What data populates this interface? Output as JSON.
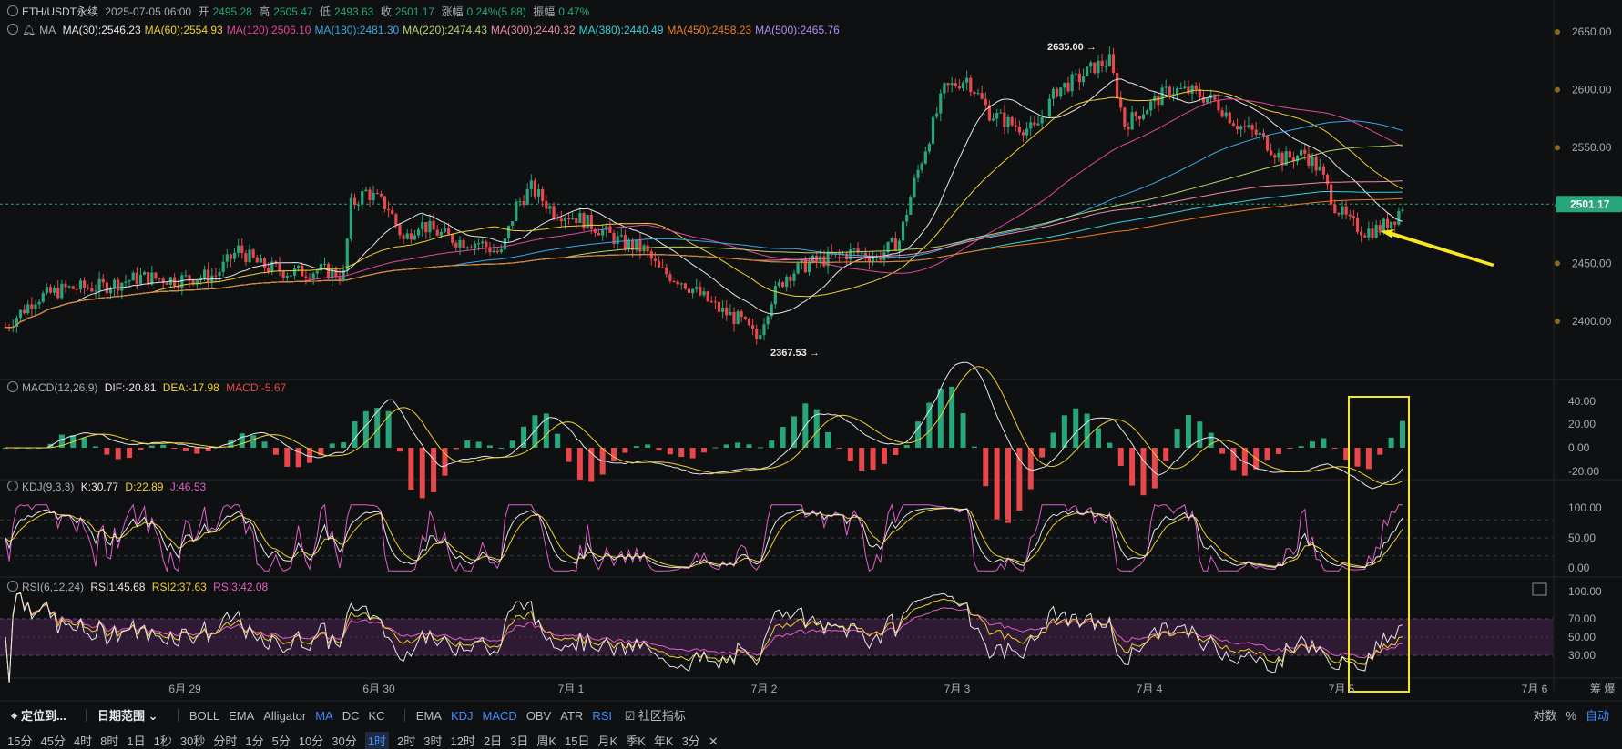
{
  "header": {
    "symbol": "ETH/USDT永续",
    "datetime": "2025-07-05 06:00",
    "open_label": "开",
    "open": "2495.28",
    "high_label": "高",
    "high": "2505.47",
    "low_label": "低",
    "low": "2493.63",
    "close_label": "收",
    "close": "2501.17",
    "change_label": "涨幅",
    "change": "0.24%(5.88)",
    "amplitude_label": "振幅",
    "amplitude": "0.47%"
  },
  "ma_legend": {
    "name": "MA",
    "items": [
      {
        "label": "MA(30):2546.23",
        "color": "#e8e8e8"
      },
      {
        "label": "MA(60):2554.93",
        "color": "#f0d12f"
      },
      {
        "label": "MA(120):2506.10",
        "color": "#e0489a"
      },
      {
        "label": "MA(180):2481.30",
        "color": "#3aa7e8"
      },
      {
        "label": "MA(220):2474.43",
        "color": "#b9d36a"
      },
      {
        "label": "MA(300):2440.32",
        "color": "#f28aa8"
      },
      {
        "label": "MA(380):2440.49",
        "color": "#36d0d8"
      },
      {
        "label": "MA(450):2458.23",
        "color": "#f07d1e"
      },
      {
        "label": "MA(500):2465.76",
        "color": "#b18cf2"
      }
    ]
  },
  "macd_legend": {
    "name": "MACD(12,26,9)",
    "dif": "DIF:-20.81",
    "dea": "DEA:-17.98",
    "macd": "MACD:-5.67"
  },
  "kdj_legend": {
    "name": "KDJ(9,3,3)",
    "k": "K:30.77",
    "d": "D:22.89",
    "j": "J:46.53"
  },
  "rsi_legend": {
    "name": "RSI(6,12,24)",
    "rsi1": "RSI1:45.68",
    "rsi2": "RSI2:37.63",
    "rsi3": "RSI3:42.08"
  },
  "price_axis": [
    "2650.00",
    "2600.00",
    "2550.00",
    "2500.00",
    "2450.00",
    "2400.00"
  ],
  "current_price": "2501.17",
  "high_marker": "2635.00",
  "low_marker": "2367.53",
  "macd_axis": [
    "40.00",
    "20.00",
    "0.00",
    "-20.00"
  ],
  "kdj_axis": [
    "100.00",
    "50.00",
    "0.00"
  ],
  "rsi_axis": [
    "100.00",
    "70.00",
    "50.00",
    "30.00"
  ],
  "date_axis": [
    "6月 29",
    "6月 30",
    "7月 1",
    "7月 2",
    "7月 3",
    "7月 4",
    "7月 5",
    "7月 6"
  ],
  "scale_label": "筹 爆",
  "toolbar": {
    "locate": "定位到...",
    "date_range": "日期范围",
    "main_indicators": [
      "BOLL",
      "EMA",
      "Alligator",
      "MA",
      "DC",
      "KC"
    ],
    "sub_indicators": [
      "EMA",
      "KDJ",
      "MACD",
      "OBV",
      "ATR",
      "RSI"
    ],
    "community": "社区指标",
    "right": [
      "对数",
      "%",
      "自动"
    ]
  },
  "intervals": [
    "15分",
    "45分",
    "4时",
    "8时",
    "1日",
    "1秒",
    "30秒",
    "分时",
    "1分",
    "5分",
    "10分",
    "30分",
    "1时",
    "2时",
    "3时",
    "12时",
    "2日",
    "3日",
    "周K",
    "15日",
    "月K",
    "季K",
    "年K",
    "3分"
  ],
  "selected_interval": "1时",
  "colors": {
    "up": "#26a67a",
    "down": "#e8474b",
    "highlight": "#f5e722",
    "bg": "#0f1012",
    "accent": "#3d8bff"
  }
}
